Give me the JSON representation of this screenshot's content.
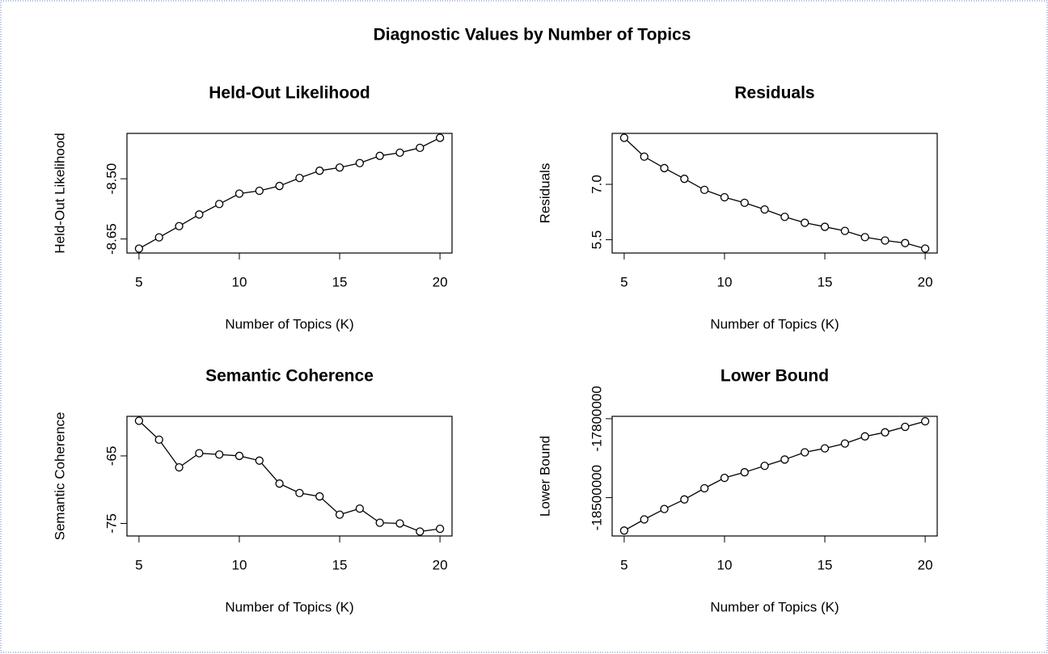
{
  "title": "Diagnostic Values by Number of Topics",
  "chart_data": [
    {
      "type": "line",
      "title": "Held-Out Likelihood",
      "x_label": "Number of Topics (K)",
      "y_label": "Held-Out Likelihood",
      "color": "#000000",
      "x": [
        5,
        6,
        7,
        8,
        9,
        10,
        11,
        12,
        13,
        14,
        15,
        16,
        17,
        18,
        19,
        20
      ],
      "values": [
        -8.674,
        -8.646,
        -8.618,
        -8.589,
        -8.563,
        -8.537,
        -8.53,
        -8.518,
        -8.498,
        -8.48,
        -8.472,
        -8.461,
        -8.443,
        -8.435,
        -8.423,
        -8.398
      ],
      "xlim": [
        4.4,
        20.6
      ],
      "ylim": [
        -8.685,
        -8.387
      ],
      "xticks": [
        5,
        10,
        15,
        20
      ],
      "yticks": [
        -8.65,
        {
          "value": -8.5,
          "label": "-8.50"
        }
      ]
    },
    {
      "type": "line",
      "title": "Residuals",
      "x_label": "Number of Topics (K)",
      "y_label": "Residuals",
      "color": "#000000",
      "x": [
        5,
        6,
        7,
        8,
        9,
        10,
        11,
        12,
        13,
        14,
        15,
        16,
        17,
        18,
        19,
        20
      ],
      "values": [
        8.26,
        7.75,
        7.44,
        7.15,
        6.85,
        6.65,
        6.5,
        6.32,
        6.12,
        5.96,
        5.85,
        5.74,
        5.57,
        5.48,
        5.41,
        5.26
      ],
      "xlim": [
        4.4,
        20.6
      ],
      "ylim": [
        5.14,
        8.38
      ],
      "xticks": [
        5,
        10,
        15,
        20
      ],
      "yticks": [
        5.5,
        {
          "value": 7,
          "label": "7.0"
        }
      ]
    },
    {
      "type": "line",
      "title": "Semantic Coherence",
      "x_label": "Number of Topics (K)",
      "y_label": "Semantic Coherence",
      "color": "#000000",
      "x": [
        5,
        6,
        7,
        8,
        9,
        10,
        11,
        12,
        13,
        14,
        15,
        16,
        17,
        18,
        19,
        20
      ],
      "values": [
        -59.8,
        -62.6,
        -66.7,
        -64.6,
        -64.8,
        -65.0,
        -65.7,
        -69.1,
        -70.5,
        -71.0,
        -73.7,
        -72.8,
        -74.9,
        -75.0,
        -76.2,
        -75.8
      ],
      "xlim": [
        4.4,
        20.6
      ],
      "ylim": [
        -76.86,
        -59.14
      ],
      "xticks": [
        5,
        10,
        15,
        20
      ],
      "yticks": [
        -75,
        -65
      ]
    },
    {
      "type": "line",
      "title": "Lower Bound",
      "x_label": "Number of Topics (K)",
      "y_label": "Lower Bound",
      "color": "#000000",
      "x": [
        5,
        6,
        7,
        8,
        9,
        10,
        11,
        12,
        13,
        14,
        15,
        16,
        17,
        18,
        19,
        20
      ],
      "values": [
        -18792000,
        -18693000,
        -18601000,
        -18516000,
        -18417000,
        -18325000,
        -18275000,
        -18218000,
        -18162000,
        -18098000,
        -18063000,
        -18020000,
        -17957000,
        -17921000,
        -17872000,
        -17823000
      ],
      "xlim": [
        4.4,
        20.6
      ],
      "ylim": [
        -18840000,
        -17779000
      ],
      "xticks": [
        5,
        10,
        15,
        20
      ],
      "yticks": [
        -18500000,
        -17800000
      ]
    }
  ]
}
